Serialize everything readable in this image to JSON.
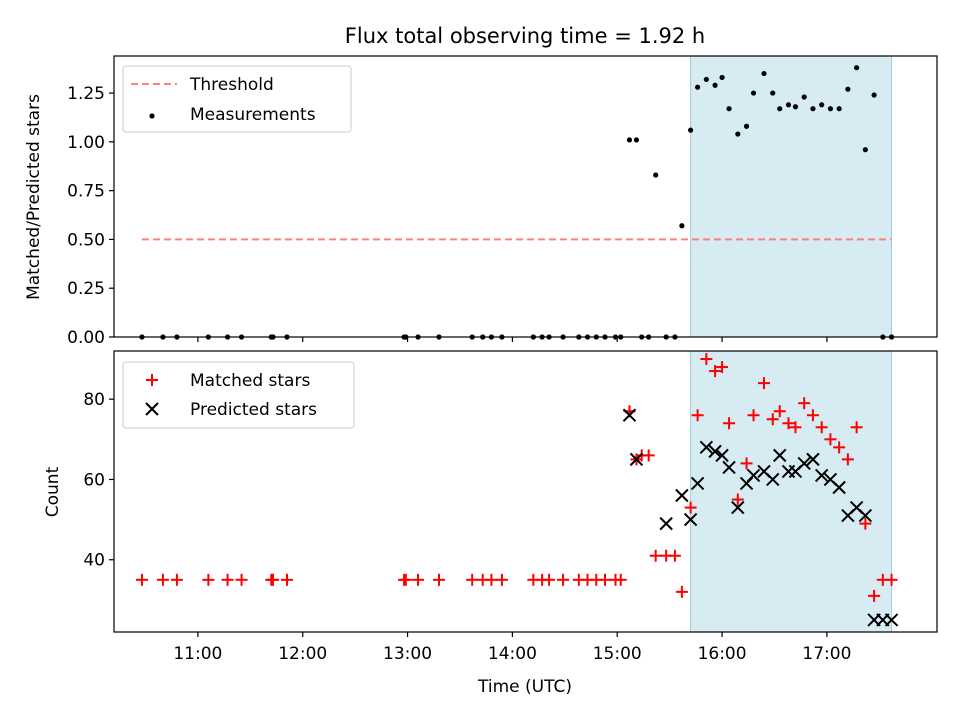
{
  "chart_data": [
    {
      "type": "scatter",
      "title": "Flux total observing time = 1.92 h",
      "ylabel": "Matched/Predicted stars",
      "xlabel": "",
      "xlim": [
        "10:12",
        "18:03"
      ],
      "ylim": [
        0,
        1.44
      ],
      "yticks": [
        "0.00",
        "0.25",
        "0.50",
        "0.75",
        "1.00",
        "1.25"
      ],
      "grid": false,
      "legend_position": "top-left",
      "shaded_interval": [
        "15:42",
        "17:37"
      ],
      "series": [
        {
          "name": "Threshold",
          "kind": "dashed-line",
          "color": "#ff8080",
          "x": [
            "10:28",
            "17:37"
          ],
          "y": [
            0.5,
            0.5
          ]
        },
        {
          "name": "Measurements",
          "kind": "points",
          "color": "#000000",
          "x": [
            "10:28",
            "10:40",
            "10:48",
            "11:06",
            "11:17",
            "11:25",
            "11:42",
            "11:43",
            "11:51",
            "12:58",
            "12:59",
            "13:06",
            "13:18",
            "13:37",
            "13:43",
            "13:48",
            "13:54",
            "14:12",
            "14:17",
            "14:21",
            "14:29",
            "14:38",
            "14:43",
            "14:48",
            "14:53",
            "14:59",
            "15:02",
            "15:07",
            "15:11",
            "15:14",
            "15:18",
            "15:22",
            "15:28",
            "15:33",
            "15:37",
            "15:42",
            "15:46",
            "15:51",
            "15:56",
            "16:00",
            "16:04",
            "16:09",
            "16:14",
            "16:18",
            "16:24",
            "16:29",
            "16:33",
            "16:38",
            "16:42",
            "16:47",
            "16:52",
            "16:57",
            "17:02",
            "17:07",
            "17:12",
            "17:17",
            "17:22",
            "17:27",
            "17:32",
            "17:37"
          ],
          "y": [
            0,
            0,
            0,
            0,
            0,
            0,
            0,
            0,
            0,
            0,
            0,
            0,
            0,
            0,
            0,
            0,
            0,
            0,
            0,
            0,
            0,
            0,
            0,
            0,
            0,
            0,
            0,
            1.01,
            1.01,
            0,
            0,
            0.83,
            0,
            0,
            0.57,
            1.06,
            1.28,
            1.32,
            1.29,
            1.33,
            1.17,
            1.04,
            1.08,
            1.25,
            1.35,
            1.25,
            1.17,
            1.19,
            1.18,
            1.23,
            1.17,
            1.19,
            1.17,
            1.17,
            1.27,
            1.38,
            0.96,
            1.24,
            0,
            0
          ]
        }
      ]
    },
    {
      "type": "scatter",
      "title": "",
      "ylabel": "Count",
      "xlabel": "Time (UTC)",
      "xlim": [
        "10:12",
        "18:03"
      ],
      "ylim": [
        22,
        92
      ],
      "xticks": [
        "11:00",
        "12:00",
        "13:00",
        "14:00",
        "15:00",
        "16:00",
        "17:00"
      ],
      "yticks": [
        "40",
        "60",
        "80"
      ],
      "grid": false,
      "legend_position": "top-left",
      "shaded_interval": [
        "15:42",
        "17:37"
      ],
      "series": [
        {
          "name": "Matched stars",
          "marker": "plus",
          "color": "#ff0000",
          "x": [
            "10:28",
            "10:40",
            "10:48",
            "11:06",
            "11:17",
            "11:25",
            "11:42",
            "11:43",
            "11:51",
            "12:58",
            "12:59",
            "13:06",
            "13:18",
            "13:37",
            "13:43",
            "13:48",
            "13:54",
            "14:12",
            "14:17",
            "14:21",
            "14:29",
            "14:38",
            "14:43",
            "14:48",
            "14:53",
            "14:59",
            "15:02",
            "15:07",
            "15:11",
            "15:14",
            "15:18",
            "15:22",
            "15:28",
            "15:33",
            "15:37",
            "15:42",
            "15:46",
            "15:51",
            "15:56",
            "16:00",
            "16:04",
            "16:09",
            "16:14",
            "16:18",
            "16:24",
            "16:29",
            "16:33",
            "16:38",
            "16:42",
            "16:47",
            "16:52",
            "16:57",
            "17:02",
            "17:07",
            "17:12",
            "17:17",
            "17:22",
            "17:27",
            "17:32",
            "17:37"
          ],
          "y": [
            35,
            35,
            35,
            35,
            35,
            35,
            35,
            35,
            35,
            35,
            35,
            35,
            35,
            35,
            35,
            35,
            35,
            35,
            35,
            35,
            35,
            35,
            35,
            35,
            35,
            35,
            35,
            77,
            65,
            66,
            66,
            41,
            41,
            41,
            32,
            53,
            76,
            90,
            87,
            88,
            74,
            55,
            64,
            76,
            84,
            75,
            77,
            74,
            73,
            79,
            76,
            73,
            70,
            68,
            65,
            73,
            49,
            31,
            35,
            35
          ]
        },
        {
          "name": "Predicted stars",
          "marker": "x",
          "color": "#000000",
          "x": [
            "15:07",
            "15:11",
            "15:28",
            "15:37",
            "15:42",
            "15:46",
            "15:51",
            "15:56",
            "16:00",
            "16:04",
            "16:09",
            "16:14",
            "16:18",
            "16:24",
            "16:29",
            "16:33",
            "16:38",
            "16:42",
            "16:47",
            "16:52",
            "16:57",
            "17:02",
            "17:07",
            "17:12",
            "17:17",
            "17:22",
            "17:27",
            "17:32",
            "17:37"
          ],
          "y": [
            76,
            65,
            49,
            56,
            50,
            59,
            68,
            67,
            66,
            63,
            53,
            59,
            61,
            62,
            60,
            66,
            62,
            62,
            64,
            65,
            61,
            60,
            58,
            51,
            53,
            51,
            25,
            25,
            25
          ]
        }
      ]
    }
  ]
}
